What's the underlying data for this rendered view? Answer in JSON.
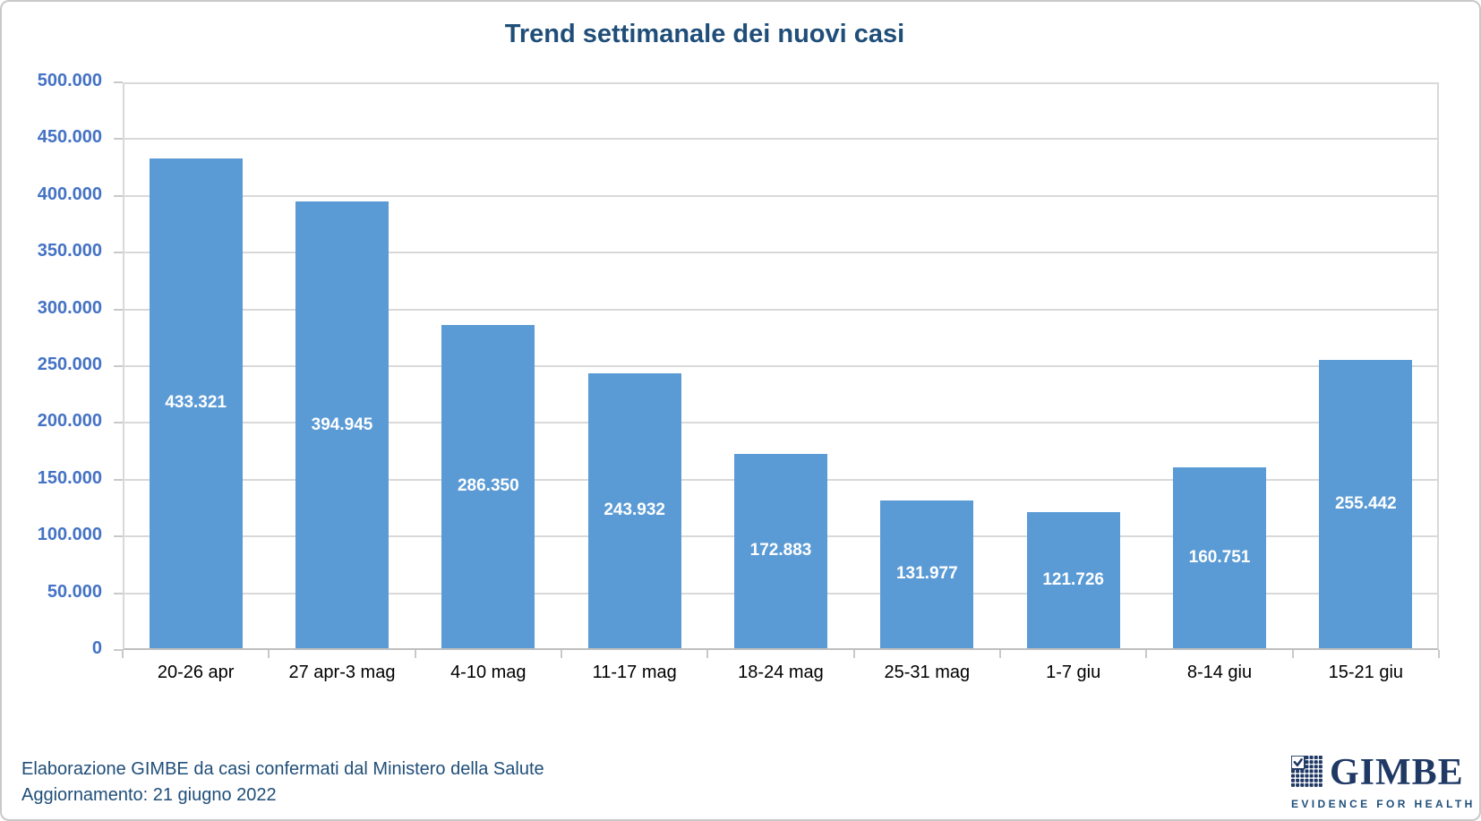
{
  "chart_data": {
    "type": "bar",
    "title": "Trend settimanale dei nuovi casi",
    "categories": [
      "20-26 apr",
      "27 apr-3 mag",
      "4-10 mag",
      "11-17 mag",
      "18-24 mag",
      "25-31 mag",
      "1-7 giu",
      "8-14 giu",
      "15-21 giu"
    ],
    "values": [
      433321,
      394945,
      286350,
      243932,
      172883,
      131977,
      121726,
      160751,
      255442
    ],
    "value_labels": [
      "433.321",
      "394.945",
      "286.350",
      "243.932",
      "172.883",
      "131.977",
      "121.726",
      "160.751",
      "255.442"
    ],
    "xlabel": "",
    "ylabel": "",
    "ylim": [
      0,
      500000
    ],
    "ytick_step": 50000,
    "ytick_labels": [
      "0",
      "50.000",
      "100.000",
      "150.000",
      "200.000",
      "250.000",
      "300.000",
      "350.000",
      "400.000",
      "450.000",
      "500.000"
    ],
    "grid": true,
    "legend_position": "none",
    "bar_color": "#5B9BD5",
    "value_label_color": "#FFFFFF"
  },
  "footer": {
    "line1": "Elaborazione GIMBE da casi confermati dal Ministero della Salute",
    "line2": "Aggiornamento: 21 giugno 2022"
  },
  "logo": {
    "wordmark": "GIMBE",
    "tagline": "EVIDENCE FOR HEALTH"
  },
  "colors": {
    "title_text": "#1F4E79",
    "y_axis_labels": "#4472C4",
    "x_axis_labels": "#000000",
    "gridline": "#D9D9D9",
    "axis_line": "#BFBFBF",
    "bar_fill": "#5B9BD5",
    "footer_text": "#1F4E79",
    "logo_navy": "#1F3864",
    "frame_border": "#C9C9C9"
  }
}
